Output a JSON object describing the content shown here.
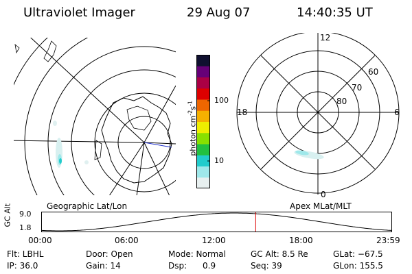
{
  "header": {
    "instrument": "Ultraviolet Imager",
    "date": "29 Aug 07",
    "time": "14:40:35 UT"
  },
  "left_panel": {
    "label": "Geographic Lat/Lon"
  },
  "right_panel": {
    "label": "Apex MLat/MLT",
    "mlt_labels": [
      "12",
      "18",
      "6",
      "0"
    ],
    "mlat_labels": [
      "60",
      "70",
      "80"
    ]
  },
  "colorbar": {
    "unit": "photon cm",
    "unit_exp1": "-2",
    "unit_s": "s",
    "unit_exp2": "-1",
    "tick_100": "100",
    "tick_10": "10",
    "colors": [
      "#e8f0f0",
      "#9fe8ea",
      "#22cccc",
      "#22c040",
      "#88e000",
      "#eeee00",
      "#f5b000",
      "#ee6600",
      "#dd0000",
      "#aa0044",
      "#660077",
      "#101030"
    ]
  },
  "altitude_plot": {
    "ylabel": "GC Alt",
    "ymax_label": "9.0",
    "ymin_label": "1.8",
    "xticks": [
      "00:00",
      "06:00",
      "12:00",
      "18:00",
      "23:59"
    ],
    "marker_time_hours": 14.68,
    "marker_color": "#dd0000"
  },
  "info": {
    "flt": "Flt: LBHL",
    "ip": "IP: 36.0",
    "door": "Door: Open",
    "gain": "Gain: 14",
    "mode": "Mode: Normal",
    "dsp": "Dsp:      0.9",
    "gc_alt": "GC Alt: 8.5 Re",
    "seq": "Seq: 39",
    "glat": "GLat: −67.5",
    "glon": "GLon: 155.5"
  }
}
